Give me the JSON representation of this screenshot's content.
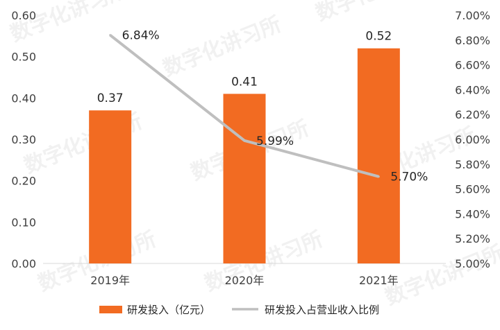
{
  "watermark": "数字化讲习所",
  "chart_data": {
    "type": "bar+line",
    "categories": [
      "2019年",
      "2020年",
      "2021年"
    ],
    "series": [
      {
        "name": "研发投入（亿元）",
        "type": "bar",
        "axis": "left",
        "color": "#F26B22",
        "values": [
          0.37,
          0.41,
          0.52
        ],
        "labels": [
          "0.37",
          "0.41",
          "0.52"
        ]
      },
      {
        "name": "研发投入占营业收入比例",
        "type": "line",
        "axis": "right",
        "color": "#BFBFBF",
        "values": [
          6.84,
          5.99,
          5.7
        ],
        "labels": [
          "6.84%",
          "5.99%",
          "5.70%"
        ]
      }
    ],
    "y_left": {
      "lim": [
        0,
        0.6
      ],
      "ticks": [
        "0.00",
        "0.10",
        "0.20",
        "0.30",
        "0.40",
        "0.50",
        "0.60"
      ]
    },
    "y_right": {
      "lim": [
        5.0,
        7.0
      ],
      "ticks": [
        "5.00%",
        "5.20%",
        "5.40%",
        "5.60%",
        "5.80%",
        "6.00%",
        "6.20%",
        "6.40%",
        "6.60%",
        "6.80%",
        "7.00%"
      ]
    },
    "legend_position": "bottom",
    "grid": false
  }
}
